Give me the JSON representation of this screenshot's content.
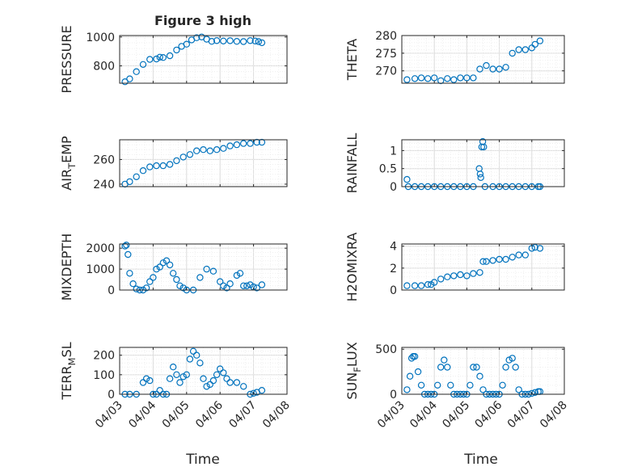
{
  "figure": {
    "title": "Figure 3 high",
    "xlabel": "Time"
  },
  "colors": {
    "marker": "#0072BD",
    "axis": "#262626",
    "grid": "#dcdcdc"
  },
  "x_ticks": [
    "04/03",
    "04/04",
    "04/05",
    "04/06",
    "04/07",
    "04/08"
  ],
  "chart_data": [
    {
      "type": "scatter",
      "ylabel": "PRESSURE",
      "xlim": [
        "04/03",
        "04/08"
      ],
      "ylim": [
        680,
        1010
      ],
      "yticks": [
        800,
        1000
      ],
      "grid": true,
      "x_days": [
        0.16,
        0.3,
        0.5,
        0.7,
        0.9,
        1.1,
        1.2,
        1.3,
        1.5,
        1.7,
        1.85,
        2.0,
        2.15,
        2.3,
        2.45,
        2.6,
        2.75,
        2.9,
        3.1,
        3.3,
        3.5,
        3.7,
        3.9,
        4.05,
        4.15,
        4.25
      ],
      "y": [
        690,
        710,
        760,
        810,
        845,
        848,
        860,
        858,
        870,
        910,
        935,
        950,
        980,
        995,
        1000,
        985,
        970,
        975,
        972,
        974,
        970,
        968,
        975,
        972,
        968,
        960
      ]
    },
    {
      "type": "scatter",
      "ylabel": "AIR_TEMP",
      "xlim": [
        "04/03",
        "04/08"
      ],
      "ylim": [
        238,
        276
      ],
      "yticks": [
        240,
        260
      ],
      "grid": true,
      "x_days": [
        0.16,
        0.3,
        0.5,
        0.7,
        0.9,
        1.1,
        1.3,
        1.5,
        1.7,
        1.9,
        2.1,
        2.3,
        2.5,
        2.7,
        2.9,
        3.1,
        3.3,
        3.5,
        3.7,
        3.9,
        4.1,
        4.25
      ],
      "y": [
        240,
        242,
        246,
        251,
        254,
        255,
        255,
        256,
        259,
        262,
        264,
        267,
        268,
        267,
        268,
        269,
        271,
        272,
        273,
        273,
        274,
        274
      ]
    },
    {
      "type": "scatter",
      "ylabel": "MIXDEPTH",
      "xlim": [
        "04/03",
        "04/08"
      ],
      "ylim": [
        0,
        2200
      ],
      "yticks": [
        0,
        1000,
        2000
      ],
      "grid": true,
      "x_days": [
        0.16,
        0.2,
        0.25,
        0.3,
        0.4,
        0.5,
        0.6,
        0.7,
        0.8,
        0.9,
        1.0,
        1.1,
        1.2,
        1.3,
        1.4,
        1.5,
        1.6,
        1.7,
        1.8,
        1.9,
        2.0,
        2.2,
        2.4,
        2.6,
        2.8,
        3.0,
        3.1,
        3.2,
        3.3,
        3.5,
        3.6,
        3.7,
        3.8,
        3.9,
        4.0,
        4.1,
        4.25
      ],
      "y": [
        2100,
        2150,
        1700,
        800,
        300,
        50,
        0,
        0,
        100,
        400,
        600,
        1000,
        1100,
        1300,
        1400,
        1200,
        800,
        500,
        200,
        100,
        0,
        0,
        600,
        1000,
        900,
        400,
        200,
        100,
        300,
        700,
        800,
        200,
        200,
        250,
        150,
        100,
        250
      ]
    },
    {
      "type": "scatter",
      "ylabel": "TERR_MSL",
      "xlim": [
        "04/03",
        "04/08"
      ],
      "ylim": [
        0,
        240
      ],
      "yticks": [
        0,
        100,
        200
      ],
      "grid": true,
      "x_days": [
        0.16,
        0.3,
        0.5,
        0.7,
        0.8,
        0.9,
        1.0,
        1.1,
        1.2,
        1.3,
        1.4,
        1.5,
        1.6,
        1.7,
        1.8,
        1.9,
        2.0,
        2.1,
        2.2,
        2.3,
        2.4,
        2.5,
        2.6,
        2.7,
        2.8,
        2.9,
        3.0,
        3.1,
        3.2,
        3.3,
        3.5,
        3.7,
        3.9,
        4.0,
        4.1,
        4.25
      ],
      "y": [
        0,
        0,
        0,
        60,
        80,
        70,
        0,
        0,
        20,
        0,
        0,
        80,
        140,
        100,
        60,
        90,
        100,
        180,
        220,
        200,
        160,
        80,
        40,
        50,
        70,
        100,
        130,
        110,
        80,
        60,
        60,
        40,
        0,
        5,
        10,
        20
      ]
    },
    {
      "type": "scatter",
      "ylabel": "THETA",
      "xlim": [
        "04/03",
        "04/08"
      ],
      "ylim": [
        266.5,
        280
      ],
      "yticks": [
        270,
        275,
        280
      ],
      "grid": true,
      "x_days": [
        0.16,
        0.4,
        0.6,
        0.8,
        1.0,
        1.2,
        1.4,
        1.6,
        1.8,
        2.0,
        2.2,
        2.4,
        2.6,
        2.8,
        3.0,
        3.2,
        3.4,
        3.6,
        3.8,
        4.0,
        4.1,
        4.25
      ],
      "y": [
        267.5,
        267.8,
        268,
        267.8,
        268,
        267.2,
        267.8,
        267.5,
        268,
        268,
        268,
        270.5,
        271.5,
        270.5,
        270.5,
        271,
        275,
        276,
        276,
        276.5,
        277.5,
        278.5
      ]
    },
    {
      "type": "scatter",
      "ylabel": "RAINFALL",
      "xlim": [
        "04/03",
        "04/08"
      ],
      "ylim": [
        0,
        1.3
      ],
      "yticks": [
        0,
        0.5,
        1
      ],
      "grid": true,
      "x_days": [
        0.16,
        0.2,
        0.4,
        0.6,
        0.8,
        1.0,
        1.2,
        1.4,
        1.6,
        1.8,
        2.0,
        2.2,
        2.38,
        2.41,
        2.43,
        2.46,
        2.49,
        2.52,
        2.56,
        2.8,
        3.0,
        3.2,
        3.4,
        3.6,
        3.8,
        4.0,
        4.2,
        4.25
      ],
      "y": [
        0.2,
        0,
        0,
        0,
        0,
        0,
        0,
        0,
        0,
        0,
        0,
        0,
        0.5,
        0.35,
        0.25,
        1.1,
        1.25,
        1.1,
        0,
        0,
        0,
        0,
        0,
        0,
        0,
        0,
        0,
        0
      ]
    },
    {
      "type": "scatter",
      "ylabel": "H2OMIXRA",
      "xlim": [
        "04/03",
        "04/08"
      ],
      "ylim": [
        0,
        4.2
      ],
      "yticks": [
        0,
        2,
        4
      ],
      "grid": true,
      "x_days": [
        0.16,
        0.4,
        0.6,
        0.8,
        0.9,
        1.0,
        1.2,
        1.4,
        1.6,
        1.8,
        2.0,
        2.2,
        2.4,
        2.5,
        2.6,
        2.8,
        3.0,
        3.2,
        3.4,
        3.6,
        3.8,
        4.0,
        4.1,
        4.25
      ],
      "y": [
        0.4,
        0.4,
        0.4,
        0.5,
        0.5,
        0.7,
        1.0,
        1.2,
        1.3,
        1.4,
        1.3,
        1.5,
        1.6,
        2.6,
        2.6,
        2.7,
        2.8,
        2.8,
        3.0,
        3.2,
        3.2,
        3.8,
        3.9,
        3.8
      ]
    },
    {
      "type": "scatter",
      "ylabel": "SUN_FLUX",
      "xlim": [
        "04/03",
        "04/08"
      ],
      "ylim": [
        0,
        520
      ],
      "yticks": [
        0,
        500
      ],
      "grid": true,
      "x_days": [
        0.16,
        0.25,
        0.3,
        0.35,
        0.4,
        0.5,
        0.6,
        0.7,
        0.8,
        0.9,
        1.0,
        1.1,
        1.2,
        1.3,
        1.4,
        1.5,
        1.6,
        1.7,
        1.8,
        1.9,
        2.0,
        2.1,
        2.2,
        2.3,
        2.4,
        2.5,
        2.6,
        2.7,
        2.8,
        2.9,
        3.0,
        3.1,
        3.2,
        3.3,
        3.4,
        3.5,
        3.6,
        3.7,
        3.8,
        3.9,
        4.0,
        4.1,
        4.2,
        4.25
      ],
      "y": [
        50,
        200,
        400,
        420,
        420,
        250,
        100,
        0,
        0,
        0,
        0,
        100,
        300,
        380,
        300,
        100,
        0,
        0,
        0,
        0,
        0,
        100,
        300,
        300,
        200,
        50,
        0,
        0,
        0,
        0,
        0,
        100,
        300,
        380,
        400,
        300,
        50,
        0,
        0,
        0,
        10,
        20,
        30,
        30
      ]
    }
  ]
}
